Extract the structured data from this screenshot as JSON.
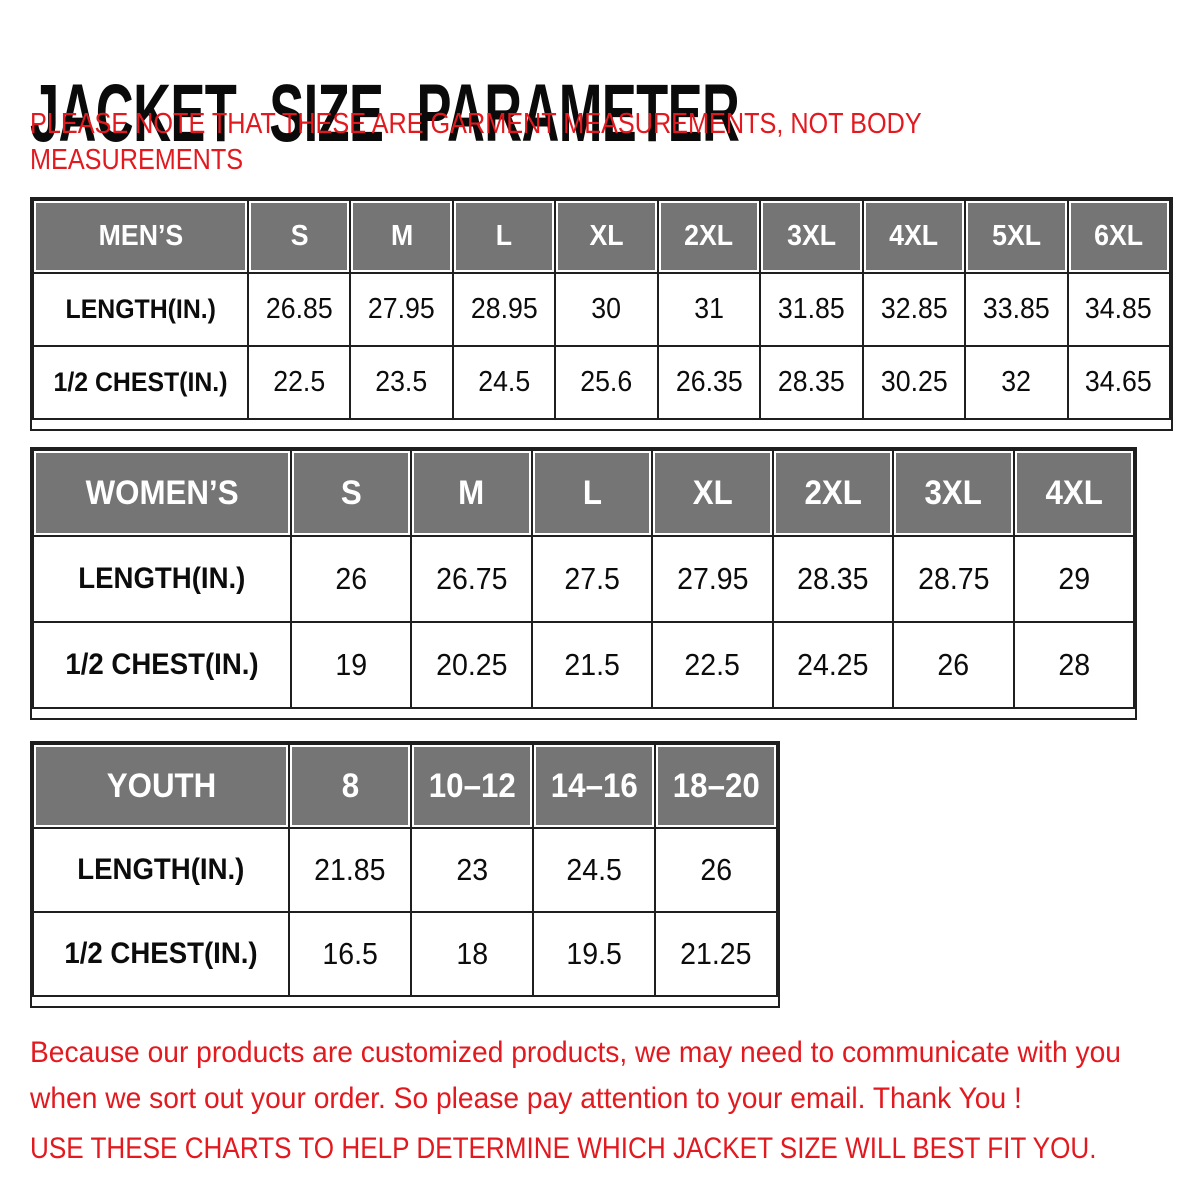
{
  "page": {
    "title": "JACKET SIZE PARAMETER",
    "note_line1": "PLEASE NOTE THAT THESE ARE GARMENT MEASUREMENTS, NOT BODY",
    "note_line2": "MEASUREMENTS"
  },
  "tables": [
    {
      "name": "MEN’S",
      "sizes": [
        "S",
        "M",
        "L",
        "XL",
        "2XL",
        "3XL",
        "4XL",
        "5XL",
        "6XL"
      ],
      "rows": [
        {
          "label": "LENGTH(IN.)",
          "values": [
            "26.85",
            "27.95",
            "28.95",
            "30",
            "31",
            "31.85",
            "32.85",
            "33.85",
            "34.85"
          ]
        },
        {
          "label": "1/2 CHEST(IN.)",
          "values": [
            "22.5",
            "23.5",
            "24.5",
            "25.6",
            "26.35",
            "28.35",
            "30.25",
            "32",
            "34.65"
          ]
        }
      ]
    },
    {
      "name": "WOMEN’S",
      "sizes": [
        "S",
        "M",
        "L",
        "XL",
        "2XL",
        "3XL",
        "4XL"
      ],
      "rows": [
        {
          "label": "LENGTH(IN.)",
          "values": [
            "26",
            "26.75",
            "27.5",
            "27.95",
            "28.35",
            "28.75",
            "29"
          ]
        },
        {
          "label": "1/2 CHEST(IN.)",
          "values": [
            "19",
            "20.25",
            "21.5",
            "22.5",
            "24.25",
            "26",
            "28"
          ]
        }
      ]
    },
    {
      "name": "YOUTH",
      "sizes": [
        "8",
        "10–12",
        "14–16",
        "18–20"
      ],
      "rows": [
        {
          "label": "LENGTH(IN.)",
          "values": [
            "21.85",
            "23",
            "24.5",
            "26"
          ]
        },
        {
          "label": "1/2 CHEST(IN.)",
          "values": [
            "16.5",
            "18",
            "19.5",
            "21.25"
          ]
        }
      ]
    }
  ],
  "footer": {
    "line1": "Because our products are customized products, we may need to communicate with you",
    "line2": "when we sort out your order. So please pay attention to your email. Thank You !",
    "line3": "USE THESE CHARTS TO HELP DETERMINE WHICH JACKET SIZE WILL BEST FIT YOU."
  },
  "colors": {
    "accent_red": "#e2191f",
    "header_bg": "#757575",
    "header_text": "#ffffff",
    "border": "#1f1f1f",
    "title_text": "#0a0a0a"
  }
}
